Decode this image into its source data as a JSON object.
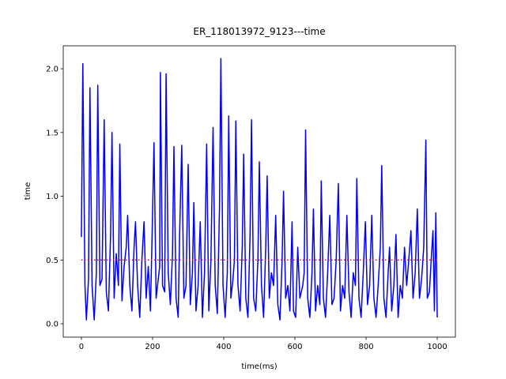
{
  "chart_data": {
    "type": "line",
    "title": "ER_118013972_9123---time",
    "xlabel": "time(ms)",
    "ylabel": "time",
    "x": [
      0,
      4,
      10,
      14,
      20,
      24,
      30,
      36,
      42,
      46,
      52,
      58,
      64,
      70,
      76,
      82,
      86,
      92,
      98,
      104,
      108,
      114,
      120,
      126,
      130,
      136,
      142,
      148,
      152,
      158,
      164,
      170,
      176,
      182,
      188,
      194,
      198,
      204,
      210,
      216,
      220,
      222,
      228,
      234,
      238,
      244,
      250,
      256,
      260,
      266,
      272,
      276,
      282,
      288,
      294,
      300,
      306,
      312,
      316,
      322,
      328,
      334,
      340,
      346,
      352,
      358,
      364,
      370,
      376,
      382,
      388,
      392,
      398,
      404,
      410,
      414,
      420,
      426,
      430,
      434,
      440,
      446,
      452,
      456,
      462,
      468,
      474,
      478,
      484,
      490,
      496,
      500,
      506,
      512,
      518,
      522,
      528,
      534,
      540,
      546,
      552,
      558,
      564,
      568,
      574,
      580,
      586,
      592,
      596,
      602,
      608,
      614,
      622,
      626,
      630,
      636,
      642,
      648,
      652,
      658,
      664,
      670,
      674,
      680,
      686,
      692,
      698,
      704,
      710,
      716,
      722,
      728,
      734,
      740,
      746,
      752,
      758,
      764,
      770,
      774,
      780,
      786,
      792,
      798,
      804,
      810,
      816,
      822,
      828,
      834,
      840,
      844,
      850,
      856,
      862,
      866,
      872,
      878,
      884,
      890,
      896,
      902,
      908,
      914,
      920,
      926,
      932,
      938,
      944,
      950,
      956,
      962,
      968,
      972,
      978,
      984,
      988,
      992,
      996,
      1000
    ],
    "series": [
      {
        "name": "time",
        "color": "#0000ff",
        "values": [
          0.68,
          2.04,
          0.3,
          0.03,
          0.35,
          1.85,
          0.3,
          0.03,
          0.4,
          1.87,
          0.3,
          0.35,
          1.6,
          0.25,
          0.1,
          0.7,
          1.5,
          0.2,
          0.55,
          0.3,
          1.41,
          0.18,
          0.45,
          0.6,
          0.85,
          0.3,
          0.1,
          0.6,
          0.8,
          0.3,
          0.05,
          0.5,
          0.8,
          0.2,
          0.45,
          0.1,
          0.6,
          1.42,
          0.2,
          0.35,
          0.45,
          1.97,
          0.3,
          0.25,
          1.96,
          0.4,
          0.15,
          0.55,
          1.39,
          0.2,
          0.05,
          0.7,
          1.4,
          0.2,
          0.3,
          1.25,
          0.15,
          0.4,
          0.95,
          0.1,
          0.3,
          0.8,
          0.05,
          0.4,
          1.41,
          0.1,
          0.5,
          1.54,
          0.3,
          0.08,
          0.9,
          2.08,
          0.3,
          0.05,
          0.4,
          1.63,
          0.2,
          0.35,
          0.5,
          1.59,
          0.3,
          0.1,
          0.6,
          1.33,
          0.2,
          0.05,
          0.7,
          1.6,
          0.2,
          0.1,
          0.5,
          1.27,
          0.3,
          0.05,
          0.6,
          1.16,
          0.2,
          0.4,
          0.3,
          0.85,
          0.15,
          0.03,
          0.5,
          1.04,
          0.2,
          0.3,
          0.1,
          0.8,
          0.1,
          0.05,
          0.6,
          0.2,
          0.3,
          0.4,
          1.52,
          0.2,
          0.05,
          0.4,
          0.9,
          0.1,
          0.3,
          0.15,
          1.12,
          0.2,
          0.05,
          0.4,
          0.85,
          0.15,
          0.2,
          0.5,
          1.1,
          0.1,
          0.3,
          0.2,
          0.85,
          0.25,
          0.05,
          0.4,
          0.3,
          1.14,
          0.2,
          0.05,
          0.4,
          0.8,
          0.15,
          0.3,
          0.85,
          0.2,
          0.05,
          0.3,
          0.6,
          1.24,
          0.2,
          0.05,
          0.4,
          0.6,
          0.1,
          0.3,
          0.7,
          0.05,
          0.3,
          0.2,
          0.6,
          0.3,
          0.5,
          0.73,
          0.2,
          0.4,
          0.9,
          0.2,
          0.35,
          0.6,
          1.44,
          0.2,
          0.25,
          0.55,
          0.73,
          0.1,
          0.87,
          0.05
        ]
      }
    ],
    "hline": {
      "y": 0.5,
      "color": "#ff0000",
      "xmin": 0,
      "xmax": 1000
    },
    "xlim": [
      -51,
      1051
    ],
    "ylim": [
      -0.105,
      2.18
    ],
    "xticks": [
      0,
      200,
      400,
      600,
      800,
      1000
    ],
    "yticks": [
      {
        "value": 0,
        "label": "0.0"
      },
      0.5,
      {
        "value": 1,
        "label": "1.0"
      },
      1.5,
      {
        "value": 2,
        "label": "2.0"
      }
    ]
  }
}
